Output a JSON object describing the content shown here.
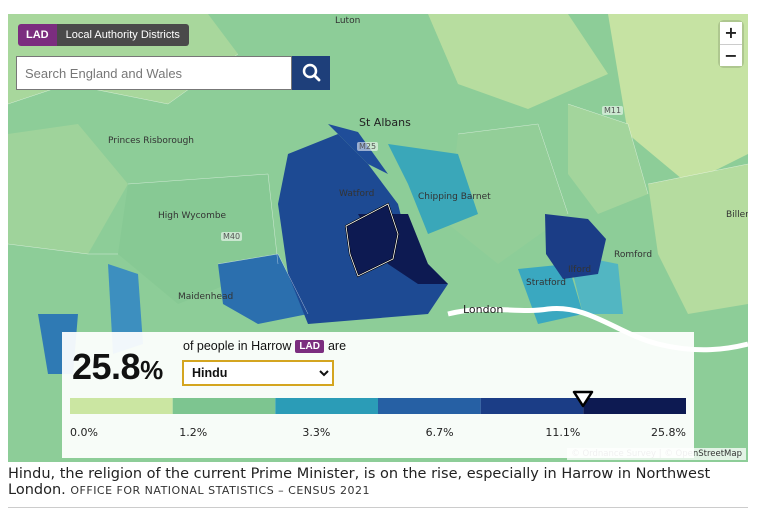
{
  "layer_badge": {
    "code": "LAD",
    "label": "Local Authority Districts"
  },
  "search": {
    "placeholder": "Search England and Wales",
    "icon": "search-icon"
  },
  "zoom": {
    "in_label": "+",
    "out_label": "−"
  },
  "places": {
    "luton": "Luton",
    "st_albans": "St Albans",
    "princes_risborough": "Princes Risborough",
    "watford": "Watford",
    "chipping_barnet": "Chipping Barnet",
    "high_wycombe": "High Wycombe",
    "billericay": "Billeri",
    "romford": "Romford",
    "ilford": "Ilford",
    "stratford": "Stratford",
    "maidenhead": "Maidenhead",
    "london": "London"
  },
  "roads": {
    "m25": "M25",
    "m40": "M40",
    "m11": "M11"
  },
  "stat": {
    "value": "25.8",
    "unit": "%",
    "sentence_prefix": "of people in Harrow",
    "badge": "LAD",
    "sentence_suffix": "are",
    "selected_option": "Hindu"
  },
  "legend": {
    "breaks": [
      "0.0%",
      "1.2%",
      "3.3%",
      "6.7%",
      "11.1%",
      "25.8%"
    ],
    "colors": [
      "#cbe6a2",
      "#7dc590",
      "#2b9cb7",
      "#2660a4",
      "#1b3d86",
      "#0d1a52"
    ],
    "selected_value": 25.8
  },
  "attribution": "© Ordnance Survey | © OpenStreetMap",
  "caption": {
    "text": "Hindu, the religion of the current Prime Minister, is on the rise, especially in Harrow in Northwest London.",
    "credit": "OFFICE FOR NATIONAL STATISTICS – CENSUS 2021"
  }
}
